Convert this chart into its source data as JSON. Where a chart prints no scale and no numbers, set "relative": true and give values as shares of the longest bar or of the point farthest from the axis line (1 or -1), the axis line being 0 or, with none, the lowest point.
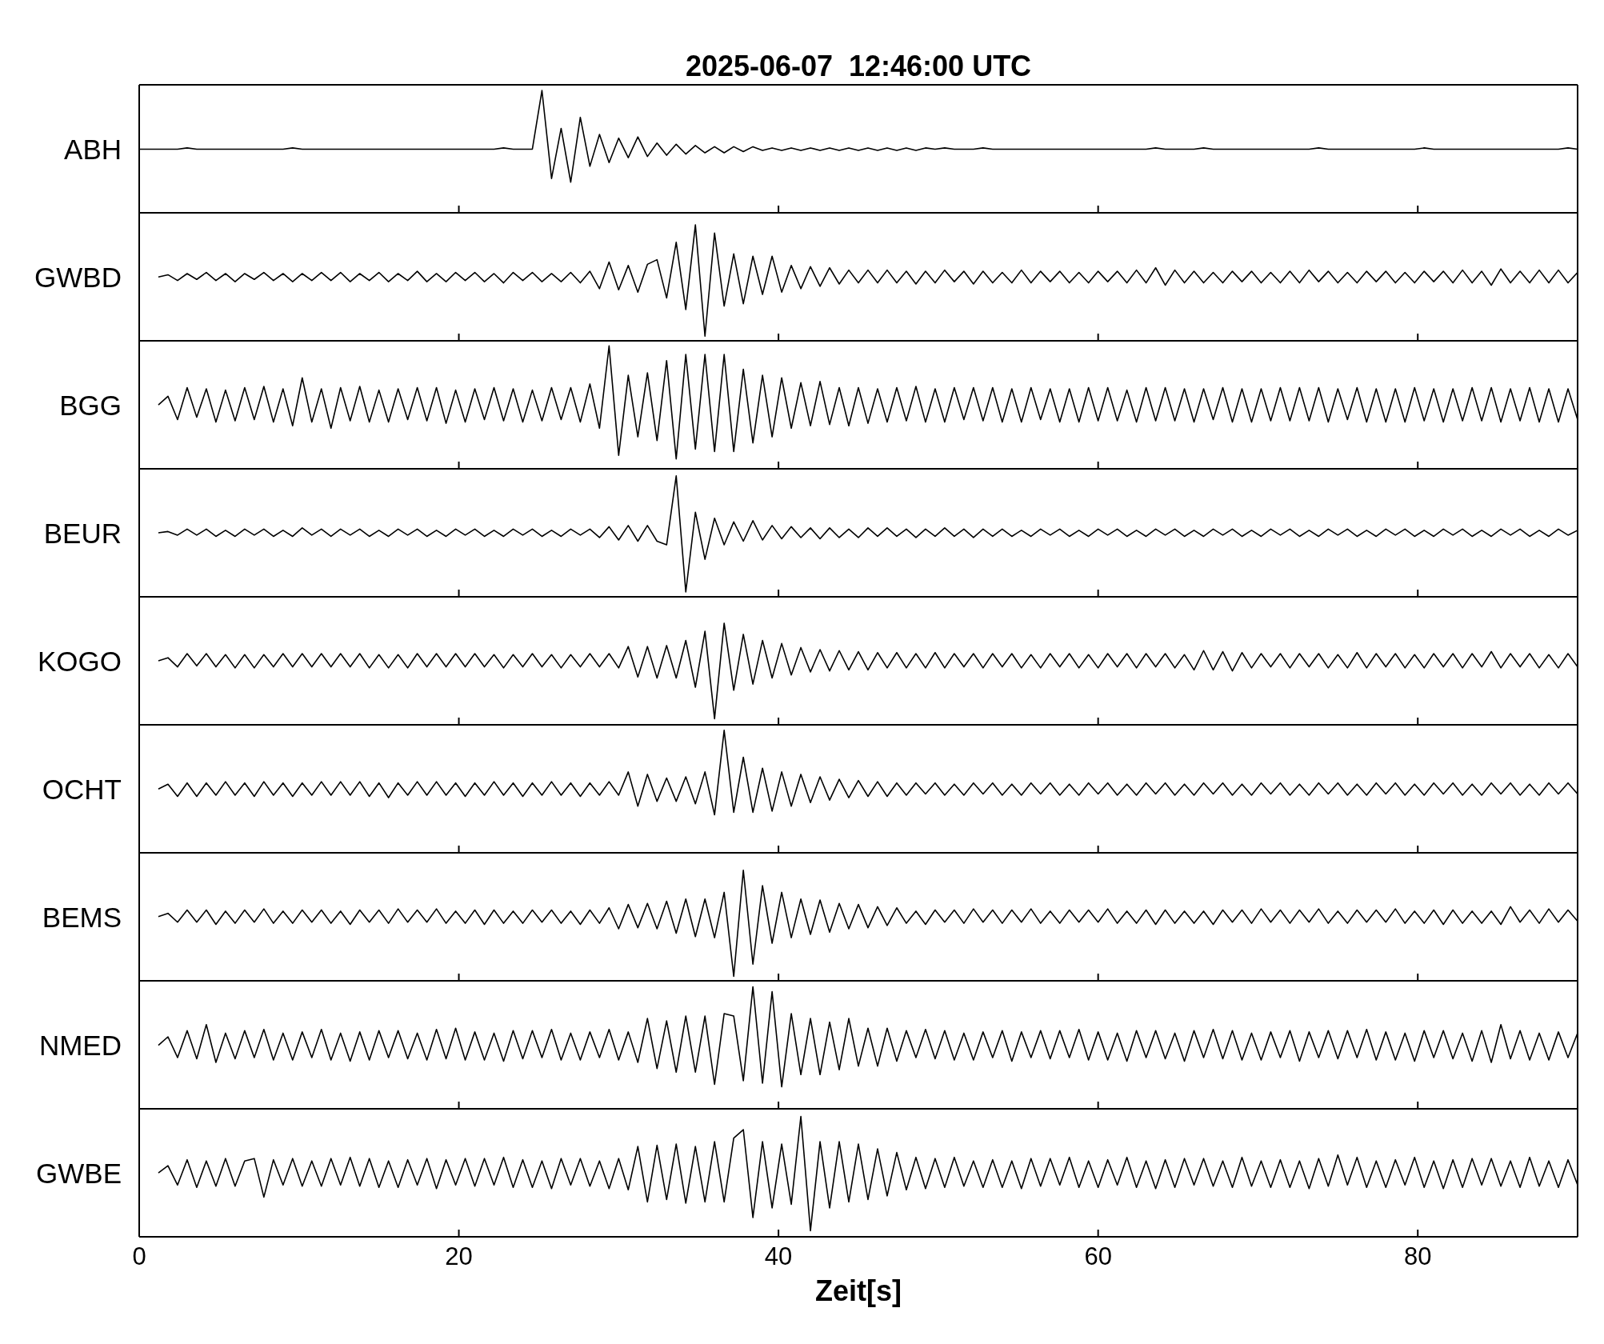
{
  "chart_data": [
    {
      "type": "line",
      "title": "2025-06-07  12:46:00 UTC",
      "ylabel": "ABH",
      "relative": true,
      "color": "#000000",
      "xlim": [
        0,
        90
      ],
      "xticks": [
        0,
        20,
        40,
        60,
        80
      ],
      "tick_labels": false,
      "x": [
        0,
        0.6,
        1.2,
        1.8,
        2.4,
        3,
        3.6,
        4.2,
        4.8,
        5.4,
        6,
        6.6,
        7.2,
        7.8,
        8.4,
        9,
        9.6,
        10.2,
        10.8,
        11.4,
        12,
        12.6,
        13.2,
        13.8,
        14.4,
        15,
        15.6,
        16.2,
        16.8,
        17.4,
        18,
        18.6,
        19.2,
        19.8,
        20.4,
        21,
        21.6,
        22.2,
        22.8,
        23.4,
        24,
        24.6,
        25.2,
        25.8,
        26.4,
        27,
        27.6,
        28.2,
        28.8,
        29.4,
        30,
        30.6,
        31.2,
        31.8,
        32.4,
        33,
        33.6,
        34.2,
        34.8,
        35.4,
        36,
        36.6,
        37.2,
        37.8,
        38.4,
        39,
        39.6,
        40.2,
        40.8,
        41.4,
        42,
        42.6,
        43.2,
        43.8,
        44.4,
        45,
        45.6,
        46.2,
        46.8,
        47.4,
        48,
        48.6,
        49.2,
        49.8,
        50.4,
        51,
        51.6,
        52.2,
        52.8,
        53.4,
        54,
        54.6,
        55.2,
        55.8,
        56.4,
        57,
        57.6,
        58.2,
        58.8,
        59.4,
        60,
        60.6,
        61.2,
        61.8,
        62.4,
        63,
        63.6,
        64.2,
        64.8,
        65.4,
        66,
        66.6,
        67.2,
        67.8,
        68.4,
        69,
        69.6,
        70.2,
        70.8,
        71.4,
        72,
        72.6,
        73.2,
        73.8,
        74.4,
        75,
        75.6,
        76.2,
        76.8,
        77.4,
        78,
        78.6,
        79.2,
        79.8,
        80.4,
        81,
        81.6,
        82.2,
        82.8,
        83.4,
        84,
        84.6,
        85.2,
        85.8,
        86.4,
        87,
        87.6,
        88.2,
        88.8,
        89.4,
        90
      ],
      "values": [
        0.52,
        0.52,
        0.52,
        0.52,
        0.52,
        0.53,
        0.52,
        0.52,
        0.52,
        0.52,
        0.52,
        0.52,
        0.52,
        0.52,
        0.52,
        0.52,
        0.53,
        0.52,
        0.52,
        0.52,
        0.52,
        0.52,
        0.52,
        0.52,
        0.52,
        0.52,
        0.52,
        0.52,
        0.52,
        0.52,
        0.52,
        0.52,
        0.52,
        0.52,
        0.52,
        0.52,
        0.52,
        0.52,
        0.53,
        0.52,
        0.52,
        0.52,
        1,
        0.28,
        0.69,
        0.25,
        0.78,
        0.38,
        0.64,
        0.41,
        0.61,
        0.45,
        0.62,
        0.46,
        0.57,
        0.47,
        0.56,
        0.48,
        0.55,
        0.49,
        0.54,
        0.49,
        0.54,
        0.5,
        0.54,
        0.51,
        0.53,
        0.51,
        0.53,
        0.51,
        0.53,
        0.51,
        0.53,
        0.51,
        0.53,
        0.51,
        0.53,
        0.51,
        0.53,
        0.51,
        0.53,
        0.51,
        0.53,
        0.52,
        0.53,
        0.52,
        0.52,
        0.52,
        0.53,
        0.52,
        0.52,
        0.52,
        0.52,
        0.52,
        0.52,
        0.52,
        0.52,
        0.52,
        0.52,
        0.52,
        0.52,
        0.52,
        0.52,
        0.52,
        0.52,
        0.52,
        0.53,
        0.52,
        0.52,
        0.52,
        0.52,
        0.53,
        0.52,
        0.52,
        0.52,
        0.52,
        0.52,
        0.52,
        0.52,
        0.52,
        0.52,
        0.52,
        0.52,
        0.53,
        0.52,
        0.52,
        0.52,
        0.52,
        0.52,
        0.52,
        0.52,
        0.52,
        0.52,
        0.52,
        0.53,
        0.52,
        0.52,
        0.52,
        0.52,
        0.52,
        0.52,
        0.52,
        0.52,
        0.52,
        0.52,
        0.52,
        0.52,
        0.52,
        0.52,
        0.53,
        0.52
      ]
    },
    {
      "type": "line",
      "ylabel": "GWBD",
      "relative": true,
      "color": "#000000",
      "xlim": [
        0,
        90
      ],
      "xticks": [
        0,
        20,
        40,
        60,
        80
      ],
      "tick_labels": false,
      "x": [
        1.2,
        1.8,
        2.4,
        3,
        3.6,
        4.2,
        4.8,
        5.4,
        6,
        6.6,
        7.2,
        7.8,
        8.4,
        9,
        9.6,
        10.2,
        10.8,
        11.4,
        12,
        12.6,
        13.2,
        13.8,
        14.4,
        15,
        15.6,
        16.2,
        16.8,
        17.4,
        18,
        18.6,
        19.2,
        19.8,
        20.4,
        21,
        21.6,
        22.2,
        22.8,
        23.4,
        24,
        24.6,
        25.2,
        25.8,
        26.4,
        27,
        27.6,
        28.2,
        28.8,
        29.4,
        30,
        30.6,
        31.2,
        31.8,
        32.4,
        33,
        33.6,
        34.2,
        34.8,
        35.4,
        36,
        36.6,
        37.2,
        37.8,
        38.4,
        39,
        39.6,
        40.2,
        40.8,
        41.4,
        42,
        42.6,
        43.2,
        43.8,
        44.4,
        45,
        45.6,
        46.2,
        46.8,
        47.4,
        48,
        48.6,
        49.2,
        49.8,
        50.4,
        51,
        51.6,
        52.2,
        52.8,
        53.4,
        54,
        54.6,
        55.2,
        55.8,
        56.4,
        57,
        57.6,
        58.2,
        58.8,
        59.4,
        60,
        60.6,
        61.2,
        61.8,
        62.4,
        63,
        63.6,
        64.2,
        64.8,
        65.4,
        66,
        66.6,
        67.2,
        67.8,
        68.4,
        69,
        69.6,
        70.2,
        70.8,
        71.4,
        72,
        72.6,
        73.2,
        73.8,
        74.4,
        75,
        75.6,
        76.2,
        76.8,
        77.4,
        78,
        78.6,
        79.2,
        79.8,
        80.4,
        81,
        81.6,
        82.2,
        82.8,
        83.4,
        84,
        84.6,
        85.2,
        85.8,
        86.4,
        87,
        87.6,
        88.2,
        88.8,
        89.4,
        90
      ],
      "values": [
        0.55,
        0.57,
        0.52,
        0.58,
        0.53,
        0.59,
        0.52,
        0.58,
        0.51,
        0.58,
        0.53,
        0.59,
        0.52,
        0.58,
        0.51,
        0.58,
        0.52,
        0.59,
        0.52,
        0.59,
        0.51,
        0.58,
        0.52,
        0.59,
        0.51,
        0.58,
        0.52,
        0.6,
        0.51,
        0.58,
        0.51,
        0.59,
        0.52,
        0.59,
        0.51,
        0.58,
        0.5,
        0.59,
        0.52,
        0.59,
        0.51,
        0.58,
        0.51,
        0.59,
        0.5,
        0.6,
        0.45,
        0.68,
        0.44,
        0.65,
        0.42,
        0.66,
        0.7,
        0.37,
        0.85,
        0.27,
        1,
        0.04,
        0.93,
        0.3,
        0.75,
        0.32,
        0.73,
        0.4,
        0.73,
        0.42,
        0.65,
        0.45,
        0.64,
        0.47,
        0.63,
        0.49,
        0.61,
        0.5,
        0.61,
        0.5,
        0.61,
        0.5,
        0.6,
        0.49,
        0.6,
        0.5,
        0.61,
        0.51,
        0.6,
        0.49,
        0.6,
        0.5,
        0.59,
        0.5,
        0.61,
        0.5,
        0.6,
        0.51,
        0.6,
        0.5,
        0.59,
        0.5,
        0.6,
        0.51,
        0.6,
        0.5,
        0.61,
        0.5,
        0.63,
        0.48,
        0.61,
        0.5,
        0.6,
        0.5,
        0.59,
        0.5,
        0.6,
        0.51,
        0.6,
        0.5,
        0.59,
        0.5,
        0.6,
        0.5,
        0.61,
        0.51,
        0.6,
        0.5,
        0.59,
        0.5,
        0.6,
        0.51,
        0.6,
        0.5,
        0.59,
        0.5,
        0.6,
        0.51,
        0.6,
        0.5,
        0.61,
        0.5,
        0.6,
        0.48,
        0.62,
        0.5,
        0.6,
        0.5,
        0.61,
        0.5,
        0.61,
        0.5,
        0.59
      ]
    },
    {
      "type": "line",
      "ylabel": "BGG",
      "relative": true,
      "color": "#000000",
      "xlim": [
        0,
        90
      ],
      "xticks": [
        0,
        20,
        40,
        60,
        80
      ],
      "tick_labels": false,
      "x": [
        1.2,
        1.8,
        2.4,
        3,
        3.6,
        4.2,
        4.8,
        5.4,
        6,
        6.6,
        7.2,
        7.8,
        8.4,
        9,
        9.6,
        10.2,
        10.8,
        11.4,
        12,
        12.6,
        13.2,
        13.8,
        14.4,
        15,
        15.6,
        16.2,
        16.8,
        17.4,
        18,
        18.6,
        19.2,
        19.8,
        20.4,
        21,
        21.6,
        22.2,
        22.8,
        23.4,
        24,
        24.6,
        25.2,
        25.8,
        26.4,
        27,
        27.6,
        28.2,
        28.8,
        29.4,
        30,
        30.6,
        31.2,
        31.8,
        32.4,
        33,
        33.6,
        34.2,
        34.8,
        35.4,
        36,
        36.6,
        37.2,
        37.8,
        38.4,
        39,
        39.6,
        40.2,
        40.8,
        41.4,
        42,
        42.6,
        43.2,
        43.8,
        44.4,
        45,
        45.6,
        46.2,
        46.8,
        47.4,
        48,
        48.6,
        49.2,
        49.8,
        50.4,
        51,
        51.6,
        52.2,
        52.8,
        53.4,
        54,
        54.6,
        55.2,
        55.8,
        56.4,
        57,
        57.6,
        58.2,
        58.8,
        59.4,
        60,
        60.6,
        61.2,
        61.8,
        62.4,
        63,
        63.6,
        64.2,
        64.8,
        65.4,
        66,
        66.6,
        67.2,
        67.8,
        68.4,
        69,
        69.6,
        70.2,
        70.8,
        71.4,
        72,
        72.6,
        73.2,
        73.8,
        74.4,
        75,
        75.6,
        76.2,
        76.8,
        77.4,
        78,
        78.6,
        79.2,
        79.8,
        80.4,
        81,
        81.6,
        82.2,
        82.8,
        83.4,
        84,
        84.6,
        85.2,
        85.8,
        86.4,
        87,
        87.6,
        88.2,
        88.8,
        89.4,
        90
      ],
      "values": [
        0.52,
        0.59,
        0.4,
        0.66,
        0.42,
        0.65,
        0.38,
        0.64,
        0.39,
        0.66,
        0.4,
        0.67,
        0.38,
        0.65,
        0.35,
        0.74,
        0.38,
        0.65,
        0.33,
        0.66,
        0.39,
        0.67,
        0.38,
        0.64,
        0.38,
        0.65,
        0.4,
        0.66,
        0.39,
        0.66,
        0.37,
        0.64,
        0.38,
        0.65,
        0.4,
        0.66,
        0.39,
        0.65,
        0.38,
        0.64,
        0.39,
        0.66,
        0.4,
        0.66,
        0.38,
        0.69,
        0.33,
        1,
        0.11,
        0.76,
        0.26,
        0.78,
        0.23,
        0.88,
        0.08,
        0.93,
        0.16,
        0.93,
        0.14,
        0.93,
        0.14,
        0.81,
        0.21,
        0.76,
        0.26,
        0.74,
        0.33,
        0.7,
        0.35,
        0.71,
        0.36,
        0.66,
        0.35,
        0.66,
        0.37,
        0.65,
        0.38,
        0.66,
        0.39,
        0.67,
        0.38,
        0.65,
        0.38,
        0.66,
        0.4,
        0.66,
        0.39,
        0.66,
        0.38,
        0.65,
        0.38,
        0.66,
        0.4,
        0.65,
        0.38,
        0.65,
        0.38,
        0.66,
        0.39,
        0.66,
        0.39,
        0.64,
        0.38,
        0.66,
        0.39,
        0.66,
        0.39,
        0.65,
        0.38,
        0.65,
        0.4,
        0.66,
        0.38,
        0.65,
        0.38,
        0.65,
        0.39,
        0.66,
        0.39,
        0.66,
        0.39,
        0.66,
        0.38,
        0.65,
        0.4,
        0.66,
        0.38,
        0.65,
        0.38,
        0.65,
        0.38,
        0.66,
        0.39,
        0.65,
        0.38,
        0.65,
        0.39,
        0.66,
        0.39,
        0.66,
        0.38,
        0.65,
        0.39,
        0.66,
        0.38,
        0.65,
        0.38,
        0.65,
        0.4
      ]
    },
    {
      "type": "line",
      "ylabel": "BEUR",
      "relative": true,
      "color": "#000000",
      "xlim": [
        0,
        90
      ],
      "xticks": [
        0,
        20,
        40,
        60,
        80
      ],
      "tick_labels": false,
      "x": [
        1.2,
        1.8,
        2.4,
        3,
        3.6,
        4.2,
        4.8,
        5.4,
        6,
        6.6,
        7.2,
        7.8,
        8.4,
        9,
        9.6,
        10.2,
        10.8,
        11.4,
        12,
        12.6,
        13.2,
        13.8,
        14.4,
        15,
        15.6,
        16.2,
        16.8,
        17.4,
        18,
        18.6,
        19.2,
        19.8,
        20.4,
        21,
        21.6,
        22.2,
        22.8,
        23.4,
        24,
        24.6,
        25.2,
        25.8,
        26.4,
        27,
        27.6,
        28.2,
        28.8,
        29.4,
        30,
        30.6,
        31.2,
        31.8,
        32.4,
        33,
        33.6,
        34.2,
        34.8,
        35.4,
        36,
        36.6,
        37.2,
        37.8,
        38.4,
        39,
        39.6,
        40.2,
        40.8,
        41.4,
        42,
        42.6,
        43.2,
        43.8,
        44.4,
        45,
        45.6,
        46.2,
        46.8,
        47.4,
        48,
        48.6,
        49.2,
        49.8,
        50.4,
        51,
        51.6,
        52.2,
        52.8,
        53.4,
        54,
        54.6,
        55.2,
        55.8,
        56.4,
        57,
        57.6,
        58.2,
        58.8,
        59.4,
        60,
        60.6,
        61.2,
        61.8,
        62.4,
        63,
        63.6,
        64.2,
        64.8,
        65.4,
        66,
        66.6,
        67.2,
        67.8,
        68.4,
        69,
        69.6,
        70.2,
        70.8,
        71.4,
        72,
        72.6,
        73.2,
        73.8,
        74.4,
        75,
        75.6,
        76.2,
        76.8,
        77.4,
        78,
        78.6,
        79.2,
        79.8,
        80.4,
        81,
        81.6,
        82.2,
        82.8,
        83.4,
        84,
        84.6,
        85.2,
        85.8,
        86.4,
        87,
        87.6,
        88.2,
        88.8,
        89.4,
        90
      ],
      "values": [
        0.53,
        0.54,
        0.51,
        0.56,
        0.51,
        0.56,
        0.5,
        0.55,
        0.5,
        0.56,
        0.51,
        0.56,
        0.5,
        0.55,
        0.5,
        0.57,
        0.51,
        0.56,
        0.5,
        0.56,
        0.51,
        0.56,
        0.5,
        0.55,
        0.5,
        0.56,
        0.51,
        0.56,
        0.5,
        0.55,
        0.5,
        0.56,
        0.51,
        0.56,
        0.5,
        0.55,
        0.5,
        0.56,
        0.51,
        0.56,
        0.5,
        0.55,
        0.5,
        0.56,
        0.51,
        0.56,
        0.49,
        0.58,
        0.47,
        0.59,
        0.46,
        0.59,
        0.46,
        0.43,
        1,
        0.04,
        0.7,
        0.31,
        0.65,
        0.43,
        0.62,
        0.46,
        0.63,
        0.47,
        0.59,
        0.48,
        0.58,
        0.49,
        0.57,
        0.48,
        0.57,
        0.49,
        0.56,
        0.49,
        0.57,
        0.5,
        0.57,
        0.5,
        0.56,
        0.49,
        0.56,
        0.5,
        0.57,
        0.5,
        0.56,
        0.49,
        0.56,
        0.5,
        0.56,
        0.5,
        0.55,
        0.5,
        0.56,
        0.51,
        0.56,
        0.5,
        0.55,
        0.5,
        0.56,
        0.51,
        0.56,
        0.5,
        0.55,
        0.5,
        0.56,
        0.51,
        0.56,
        0.5,
        0.55,
        0.5,
        0.56,
        0.51,
        0.56,
        0.5,
        0.55,
        0.5,
        0.56,
        0.51,
        0.56,
        0.5,
        0.55,
        0.5,
        0.56,
        0.51,
        0.56,
        0.5,
        0.55,
        0.5,
        0.56,
        0.51,
        0.56,
        0.5,
        0.55,
        0.5,
        0.56,
        0.51,
        0.56,
        0.5,
        0.55,
        0.5,
        0.56,
        0.51,
        0.56,
        0.5,
        0.55,
        0.5,
        0.56,
        0.51,
        0.55
      ]
    },
    {
      "type": "line",
      "ylabel": "KOGO",
      "relative": true,
      "color": "#000000",
      "xlim": [
        0,
        90
      ],
      "xticks": [
        0,
        20,
        40,
        60,
        80
      ],
      "tick_labels": false,
      "x": [
        1.2,
        1.8,
        2.4,
        3,
        3.6,
        4.2,
        4.8,
        5.4,
        6,
        6.6,
        7.2,
        7.8,
        8.4,
        9,
        9.6,
        10.2,
        10.8,
        11.4,
        12,
        12.6,
        13.2,
        13.8,
        14.4,
        15,
        15.6,
        16.2,
        16.8,
        17.4,
        18,
        18.6,
        19.2,
        19.8,
        20.4,
        21,
        21.6,
        22.2,
        22.8,
        23.4,
        24,
        24.6,
        25.2,
        25.8,
        26.4,
        27,
        27.6,
        28.2,
        28.8,
        29.4,
        30,
        30.6,
        31.2,
        31.8,
        32.4,
        33,
        33.6,
        34.2,
        34.8,
        35.4,
        36,
        36.6,
        37.2,
        37.8,
        38.4,
        39,
        39.6,
        40.2,
        40.8,
        41.4,
        42,
        42.6,
        43.2,
        43.8,
        44.4,
        45,
        45.6,
        46.2,
        46.8,
        47.4,
        48,
        48.6,
        49.2,
        49.8,
        50.4,
        51,
        51.6,
        52.2,
        52.8,
        53.4,
        54,
        54.6,
        55.2,
        55.8,
        56.4,
        57,
        57.6,
        58.2,
        58.8,
        59.4,
        60,
        60.6,
        61.2,
        61.8,
        62.4,
        63,
        63.6,
        64.2,
        64.8,
        65.4,
        66,
        66.6,
        67.2,
        67.8,
        68.4,
        69,
        69.6,
        70.2,
        70.8,
        71.4,
        72,
        72.6,
        73.2,
        73.8,
        74.4,
        75,
        75.6,
        76.2,
        76.8,
        77.4,
        78,
        78.6,
        79.2,
        79.8,
        80.4,
        81,
        81.6,
        82.2,
        82.8,
        83.4,
        84,
        84.6,
        85.2,
        85.8,
        86.4,
        87,
        87.6,
        88.2,
        88.8,
        89.4,
        90
      ],
      "values": [
        0.63,
        0.66,
        0.57,
        0.7,
        0.58,
        0.7,
        0.57,
        0.69,
        0.56,
        0.69,
        0.56,
        0.69,
        0.57,
        0.7,
        0.57,
        0.7,
        0.57,
        0.7,
        0.57,
        0.7,
        0.57,
        0.7,
        0.56,
        0.69,
        0.56,
        0.69,
        0.56,
        0.7,
        0.57,
        0.7,
        0.57,
        0.7,
        0.57,
        0.7,
        0.57,
        0.69,
        0.56,
        0.69,
        0.57,
        0.7,
        0.57,
        0.69,
        0.56,
        0.69,
        0.57,
        0.7,
        0.57,
        0.7,
        0.56,
        0.77,
        0.47,
        0.77,
        0.46,
        0.78,
        0.46,
        0.83,
        0.37,
        0.92,
        0.06,
        1,
        0.34,
        0.89,
        0.4,
        0.83,
        0.46,
        0.8,
        0.49,
        0.76,
        0.52,
        0.74,
        0.53,
        0.73,
        0.54,
        0.72,
        0.54,
        0.71,
        0.56,
        0.71,
        0.56,
        0.7,
        0.56,
        0.71,
        0.56,
        0.7,
        0.57,
        0.7,
        0.56,
        0.7,
        0.57,
        0.7,
        0.56,
        0.69,
        0.56,
        0.7,
        0.57,
        0.7,
        0.56,
        0.69,
        0.56,
        0.7,
        0.57,
        0.7,
        0.56,
        0.7,
        0.57,
        0.7,
        0.56,
        0.69,
        0.54,
        0.73,
        0.54,
        0.72,
        0.53,
        0.71,
        0.56,
        0.7,
        0.57,
        0.7,
        0.56,
        0.7,
        0.57,
        0.7,
        0.56,
        0.69,
        0.56,
        0.71,
        0.56,
        0.7,
        0.57,
        0.7,
        0.56,
        0.69,
        0.56,
        0.7,
        0.57,
        0.7,
        0.56,
        0.7,
        0.57,
        0.72,
        0.56,
        0.7,
        0.57,
        0.7,
        0.56,
        0.69,
        0.56,
        0.7,
        0.57
      ]
    },
    {
      "type": "line",
      "ylabel": "OCHT",
      "relative": true,
      "color": "#000000",
      "xlim": [
        0,
        90
      ],
      "xticks": [
        0,
        20,
        40,
        60,
        80
      ],
      "tick_labels": false,
      "x": [
        1.2,
        1.8,
        2.4,
        3,
        3.6,
        4.2,
        4.8,
        5.4,
        6,
        6.6,
        7.2,
        7.8,
        8.4,
        9,
        9.6,
        10.2,
        10.8,
        11.4,
        12,
        12.6,
        13.2,
        13.8,
        14.4,
        15,
        15.6,
        16.2,
        16.8,
        17.4,
        18,
        18.6,
        19.2,
        19.8,
        20.4,
        21,
        21.6,
        22.2,
        22.8,
        23.4,
        24,
        24.6,
        25.2,
        25.8,
        26.4,
        27,
        27.6,
        28.2,
        28.8,
        29.4,
        30,
        30.6,
        31.2,
        31.8,
        32.4,
        33,
        33.6,
        34.2,
        34.8,
        35.4,
        36,
        36.6,
        37.2,
        37.8,
        38.4,
        39,
        39.6,
        40.2,
        40.8,
        41.4,
        42,
        42.6,
        43.2,
        43.8,
        44.4,
        45,
        45.6,
        46.2,
        46.8,
        47.4,
        48,
        48.6,
        49.2,
        49.8,
        50.4,
        51,
        51.6,
        52.2,
        52.8,
        53.4,
        54,
        54.6,
        55.2,
        55.8,
        56.4,
        57,
        57.6,
        58.2,
        58.8,
        59.4,
        60,
        60.6,
        61.2,
        61.8,
        62.4,
        63,
        63.6,
        64.2,
        64.8,
        65.4,
        66,
        66.6,
        67.2,
        67.8,
        68.4,
        69,
        69.6,
        70.2,
        70.8,
        71.4,
        72,
        72.6,
        73.2,
        73.8,
        74.4,
        75,
        75.6,
        76.2,
        76.8,
        77.4,
        78,
        78.6,
        79.2,
        79.8,
        80.4,
        81,
        81.6,
        82.2,
        82.8,
        83.4,
        84,
        84.6,
        85.2,
        85.8,
        86.4,
        87,
        87.6,
        88.2,
        88.8,
        89.4,
        90
      ],
      "values": [
        0.52,
        0.56,
        0.46,
        0.57,
        0.46,
        0.57,
        0.47,
        0.58,
        0.47,
        0.57,
        0.46,
        0.58,
        0.47,
        0.57,
        0.46,
        0.57,
        0.47,
        0.58,
        0.47,
        0.58,
        0.47,
        0.58,
        0.46,
        0.57,
        0.45,
        0.57,
        0.47,
        0.58,
        0.47,
        0.58,
        0.47,
        0.57,
        0.46,
        0.57,
        0.47,
        0.58,
        0.47,
        0.57,
        0.46,
        0.57,
        0.47,
        0.58,
        0.47,
        0.57,
        0.46,
        0.57,
        0.47,
        0.58,
        0.47,
        0.66,
        0.38,
        0.64,
        0.42,
        0.61,
        0.42,
        0.62,
        0.4,
        0.66,
        0.31,
        1,
        0.33,
        0.78,
        0.33,
        0.69,
        0.34,
        0.66,
        0.38,
        0.64,
        0.41,
        0.62,
        0.43,
        0.6,
        0.45,
        0.59,
        0.46,
        0.58,
        0.46,
        0.57,
        0.47,
        0.57,
        0.48,
        0.57,
        0.47,
        0.56,
        0.47,
        0.57,
        0.48,
        0.57,
        0.47,
        0.56,
        0.47,
        0.57,
        0.48,
        0.57,
        0.47,
        0.56,
        0.47,
        0.57,
        0.48,
        0.57,
        0.47,
        0.56,
        0.47,
        0.57,
        0.48,
        0.57,
        0.47,
        0.56,
        0.47,
        0.57,
        0.48,
        0.57,
        0.47,
        0.56,
        0.47,
        0.57,
        0.48,
        0.57,
        0.47,
        0.56,
        0.47,
        0.57,
        0.48,
        0.57,
        0.47,
        0.56,
        0.47,
        0.57,
        0.48,
        0.57,
        0.47,
        0.56,
        0.47,
        0.57,
        0.48,
        0.57,
        0.47,
        0.56,
        0.47,
        0.57,
        0.48,
        0.57,
        0.47,
        0.56,
        0.47,
        0.57,
        0.48,
        0.57,
        0.48
      ]
    },
    {
      "type": "line",
      "ylabel": "BEMS",
      "relative": true,
      "color": "#000000",
      "xlim": [
        0,
        90
      ],
      "xticks": [
        0,
        20,
        40,
        60,
        80
      ],
      "tick_labels": false,
      "x": [
        1.2,
        1.8,
        2.4,
        3,
        3.6,
        4.2,
        4.8,
        5.4,
        6,
        6.6,
        7.2,
        7.8,
        8.4,
        9,
        9.6,
        10.2,
        10.8,
        11.4,
        12,
        12.6,
        13.2,
        13.8,
        14.4,
        15,
        15.6,
        16.2,
        16.8,
        17.4,
        18,
        18.6,
        19.2,
        19.8,
        20.4,
        21,
        21.6,
        22.2,
        22.8,
        23.4,
        24,
        24.6,
        25.2,
        25.8,
        26.4,
        27,
        27.6,
        28.2,
        28.8,
        29.4,
        30,
        30.6,
        31.2,
        31.8,
        32.4,
        33,
        33.6,
        34.2,
        34.8,
        35.4,
        36,
        36.6,
        37.2,
        37.8,
        38.4,
        39,
        39.6,
        40.2,
        40.8,
        41.4,
        42,
        42.6,
        43.2,
        43.8,
        44.4,
        45,
        45.6,
        46.2,
        46.8,
        47.4,
        48,
        48.6,
        49.2,
        49.8,
        50.4,
        51,
        51.6,
        52.2,
        52.8,
        53.4,
        54,
        54.6,
        55.2,
        55.8,
        56.4,
        57,
        57.6,
        58.2,
        58.8,
        59.4,
        60,
        60.6,
        61.2,
        61.8,
        62.4,
        63,
        63.6,
        64.2,
        64.8,
        65.4,
        66,
        66.6,
        67.2,
        67.8,
        68.4,
        69,
        69.6,
        70.2,
        70.8,
        71.4,
        72,
        72.6,
        73.2,
        73.8,
        74.4,
        75,
        75.6,
        76.2,
        76.8,
        77.4,
        78,
        78.6,
        79.2,
        79.8,
        80.4,
        81,
        81.6,
        82.2,
        82.8,
        83.4,
        84,
        84.6,
        85.2,
        85.8,
        86.4,
        87,
        87.6,
        88.2,
        88.8,
        89.4,
        90
      ],
      "values": [
        0.58,
        0.61,
        0.53,
        0.64,
        0.53,
        0.64,
        0.51,
        0.63,
        0.52,
        0.64,
        0.53,
        0.65,
        0.52,
        0.63,
        0.52,
        0.64,
        0.53,
        0.64,
        0.52,
        0.63,
        0.51,
        0.64,
        0.53,
        0.64,
        0.52,
        0.65,
        0.53,
        0.64,
        0.53,
        0.65,
        0.52,
        0.63,
        0.52,
        0.64,
        0.51,
        0.64,
        0.52,
        0.63,
        0.52,
        0.64,
        0.53,
        0.64,
        0.52,
        0.63,
        0.51,
        0.64,
        0.52,
        0.66,
        0.47,
        0.69,
        0.48,
        0.7,
        0.47,
        0.72,
        0.43,
        0.74,
        0.4,
        0.74,
        0.39,
        0.8,
        0.04,
        1,
        0.15,
        0.86,
        0.34,
        0.8,
        0.39,
        0.74,
        0.42,
        0.73,
        0.44,
        0.7,
        0.47,
        0.69,
        0.48,
        0.67,
        0.5,
        0.66,
        0.52,
        0.63,
        0.51,
        0.64,
        0.53,
        0.64,
        0.52,
        0.65,
        0.53,
        0.64,
        0.52,
        0.64,
        0.53,
        0.65,
        0.52,
        0.63,
        0.52,
        0.64,
        0.53,
        0.64,
        0.53,
        0.65,
        0.52,
        0.63,
        0.52,
        0.64,
        0.51,
        0.64,
        0.52,
        0.63,
        0.52,
        0.63,
        0.51,
        0.64,
        0.53,
        0.64,
        0.52,
        0.65,
        0.53,
        0.64,
        0.52,
        0.64,
        0.53,
        0.65,
        0.52,
        0.63,
        0.52,
        0.64,
        0.53,
        0.64,
        0.53,
        0.65,
        0.52,
        0.63,
        0.52,
        0.64,
        0.51,
        0.64,
        0.52,
        0.63,
        0.52,
        0.63,
        0.51,
        0.67,
        0.53,
        0.64,
        0.52,
        0.65,
        0.53,
        0.64,
        0.54
      ]
    },
    {
      "type": "line",
      "ylabel": "NMED",
      "relative": true,
      "color": "#000000",
      "xlim": [
        0,
        90
      ],
      "xticks": [
        0,
        20,
        40,
        60,
        80
      ],
      "tick_labels": false,
      "x": [
        1.2,
        1.8,
        2.4,
        3,
        3.6,
        4.2,
        4.8,
        5.4,
        6,
        6.6,
        7.2,
        7.8,
        8.4,
        9,
        9.6,
        10.2,
        10.8,
        11.4,
        12,
        12.6,
        13.2,
        13.8,
        14.4,
        15,
        15.6,
        16.2,
        16.8,
        17.4,
        18,
        18.6,
        19.2,
        19.8,
        20.4,
        21,
        21.6,
        22.2,
        22.8,
        23.4,
        24,
        24.6,
        25.2,
        25.8,
        26.4,
        27,
        27.6,
        28.2,
        28.8,
        29.4,
        30,
        30.6,
        31.2,
        31.8,
        32.4,
        33,
        33.6,
        34.2,
        34.8,
        35.4,
        36,
        36.6,
        37.2,
        37.8,
        38.4,
        39,
        39.6,
        40.2,
        40.8,
        41.4,
        42,
        42.6,
        43.2,
        43.8,
        44.4,
        45,
        45.6,
        46.2,
        46.8,
        47.4,
        48,
        48.6,
        49.2,
        49.8,
        50.4,
        51,
        51.6,
        52.2,
        52.8,
        53.4,
        54,
        54.6,
        55.2,
        55.8,
        56.4,
        57,
        57.6,
        58.2,
        58.8,
        59.4,
        60,
        60.6,
        61.2,
        61.8,
        62.4,
        63,
        63.6,
        64.2,
        64.8,
        65.4,
        66,
        66.6,
        67.2,
        67.8,
        68.4,
        69,
        69.6,
        70.2,
        70.8,
        71.4,
        72,
        72.6,
        73.2,
        73.8,
        74.4,
        75,
        75.6,
        76.2,
        76.8,
        77.4,
        78,
        78.6,
        79.2,
        79.8,
        80.4,
        81,
        81.6,
        82.2,
        82.8,
        83.4,
        84,
        84.6,
        85.2,
        85.8,
        86.4,
        87,
        87.6,
        88.2,
        88.8,
        89.4,
        90
      ],
      "values": [
        0.52,
        0.59,
        0.42,
        0.64,
        0.41,
        0.69,
        0.38,
        0.62,
        0.41,
        0.64,
        0.42,
        0.65,
        0.4,
        0.62,
        0.4,
        0.63,
        0.42,
        0.65,
        0.4,
        0.62,
        0.39,
        0.63,
        0.4,
        0.64,
        0.42,
        0.64,
        0.41,
        0.62,
        0.4,
        0.65,
        0.41,
        0.66,
        0.4,
        0.63,
        0.4,
        0.62,
        0.39,
        0.64,
        0.41,
        0.64,
        0.42,
        0.65,
        0.4,
        0.62,
        0.4,
        0.63,
        0.42,
        0.65,
        0.4,
        0.63,
        0.38,
        0.74,
        0.33,
        0.72,
        0.3,
        0.76,
        0.3,
        0.76,
        0.2,
        0.78,
        0.76,
        0.23,
        1,
        0.21,
        0.96,
        0.18,
        0.78,
        0.28,
        0.74,
        0.28,
        0.71,
        0.32,
        0.74,
        0.35,
        0.66,
        0.35,
        0.66,
        0.39,
        0.64,
        0.42,
        0.65,
        0.41,
        0.64,
        0.4,
        0.62,
        0.4,
        0.63,
        0.42,
        0.64,
        0.39,
        0.63,
        0.42,
        0.64,
        0.41,
        0.64,
        0.42,
        0.65,
        0.4,
        0.63,
        0.4,
        0.62,
        0.39,
        0.64,
        0.42,
        0.64,
        0.41,
        0.62,
        0.39,
        0.64,
        0.42,
        0.65,
        0.41,
        0.64,
        0.4,
        0.62,
        0.4,
        0.63,
        0.42,
        0.64,
        0.39,
        0.63,
        0.42,
        0.64,
        0.41,
        0.64,
        0.42,
        0.65,
        0.4,
        0.63,
        0.4,
        0.62,
        0.39,
        0.64,
        0.42,
        0.64,
        0.41,
        0.62,
        0.39,
        0.64,
        0.38,
        0.69,
        0.41,
        0.64,
        0.4,
        0.62,
        0.4,
        0.63,
        0.42,
        0.62
      ]
    },
    {
      "type": "line",
      "ylabel": "GWBE",
      "xlabel": "Zeit[s]",
      "relative": true,
      "color": "#000000",
      "xlim": [
        0,
        90
      ],
      "xticks": [
        0,
        20,
        40,
        60,
        80
      ],
      "tick_labels": "x",
      "x": [
        1.2,
        1.8,
        2.4,
        3,
        3.6,
        4.2,
        4.8,
        5.4,
        6,
        6.6,
        7.2,
        7.8,
        8.4,
        9,
        9.6,
        10.2,
        10.8,
        11.4,
        12,
        12.6,
        13.2,
        13.8,
        14.4,
        15,
        15.6,
        16.2,
        16.8,
        17.4,
        18,
        18.6,
        19.2,
        19.8,
        20.4,
        21,
        21.6,
        22.2,
        22.8,
        23.4,
        24,
        24.6,
        25.2,
        25.8,
        26.4,
        27,
        27.6,
        28.2,
        28.8,
        29.4,
        30,
        30.6,
        31.2,
        31.8,
        32.4,
        33,
        33.6,
        34.2,
        34.8,
        35.4,
        36,
        36.6,
        37.2,
        37.8,
        38.4,
        39,
        39.6,
        40.2,
        40.8,
        41.4,
        42,
        42.6,
        43.2,
        43.8,
        44.4,
        45,
        45.6,
        46.2,
        46.8,
        47.4,
        48,
        48.6,
        49.2,
        49.8,
        50.4,
        51,
        51.6,
        52.2,
        52.8,
        53.4,
        54,
        54.6,
        55.2,
        55.8,
        56.4,
        57,
        57.6,
        58.2,
        58.8,
        59.4,
        60,
        60.6,
        61.2,
        61.8,
        62.4,
        63,
        63.6,
        64.2,
        64.8,
        65.4,
        66,
        66.6,
        67.2,
        67.8,
        68.4,
        69,
        69.6,
        70.2,
        70.8,
        71.4,
        72,
        72.6,
        73.2,
        73.8,
        74.4,
        75,
        75.6,
        76.2,
        76.8,
        77.4,
        78,
        78.6,
        79.2,
        79.8,
        80.4,
        81,
        81.6,
        82.2,
        82.8,
        83.4,
        84,
        84.6,
        85.2,
        85.8,
        86.4,
        87,
        87.6,
        88.2,
        88.8,
        89.4,
        90
      ],
      "values": [
        0.53,
        0.59,
        0.43,
        0.64,
        0.41,
        0.63,
        0.42,
        0.65,
        0.42,
        0.63,
        0.65,
        0.33,
        0.64,
        0.43,
        0.65,
        0.42,
        0.63,
        0.42,
        0.65,
        0.43,
        0.66,
        0.42,
        0.65,
        0.41,
        0.63,
        0.41,
        0.64,
        0.43,
        0.65,
        0.4,
        0.64,
        0.43,
        0.65,
        0.42,
        0.65,
        0.43,
        0.66,
        0.41,
        0.64,
        0.41,
        0.63,
        0.4,
        0.65,
        0.43,
        0.65,
        0.42,
        0.63,
        0.4,
        0.65,
        0.39,
        0.75,
        0.29,
        0.76,
        0.31,
        0.77,
        0.28,
        0.75,
        0.29,
        0.79,
        0.29,
        0.82,
        0.89,
        0.16,
        0.79,
        0.24,
        0.77,
        0.27,
        1,
        0.05,
        0.79,
        0.24,
        0.79,
        0.29,
        0.77,
        0.31,
        0.73,
        0.34,
        0.7,
        0.39,
        0.66,
        0.4,
        0.65,
        0.41,
        0.66,
        0.42,
        0.63,
        0.41,
        0.64,
        0.41,
        0.63,
        0.4,
        0.65,
        0.42,
        0.65,
        0.43,
        0.66,
        0.41,
        0.63,
        0.41,
        0.64,
        0.43,
        0.66,
        0.41,
        0.63,
        0.4,
        0.64,
        0.41,
        0.65,
        0.43,
        0.65,
        0.42,
        0.63,
        0.41,
        0.66,
        0.42,
        0.63,
        0.41,
        0.64,
        0.41,
        0.63,
        0.4,
        0.65,
        0.42,
        0.68,
        0.43,
        0.66,
        0.41,
        0.63,
        0.41,
        0.64,
        0.43,
        0.66,
        0.41,
        0.63,
        0.4,
        0.64,
        0.41,
        0.65,
        0.43,
        0.65,
        0.42,
        0.63,
        0.41,
        0.66,
        0.42,
        0.63,
        0.41,
        0.64,
        0.43
      ]
    }
  ]
}
